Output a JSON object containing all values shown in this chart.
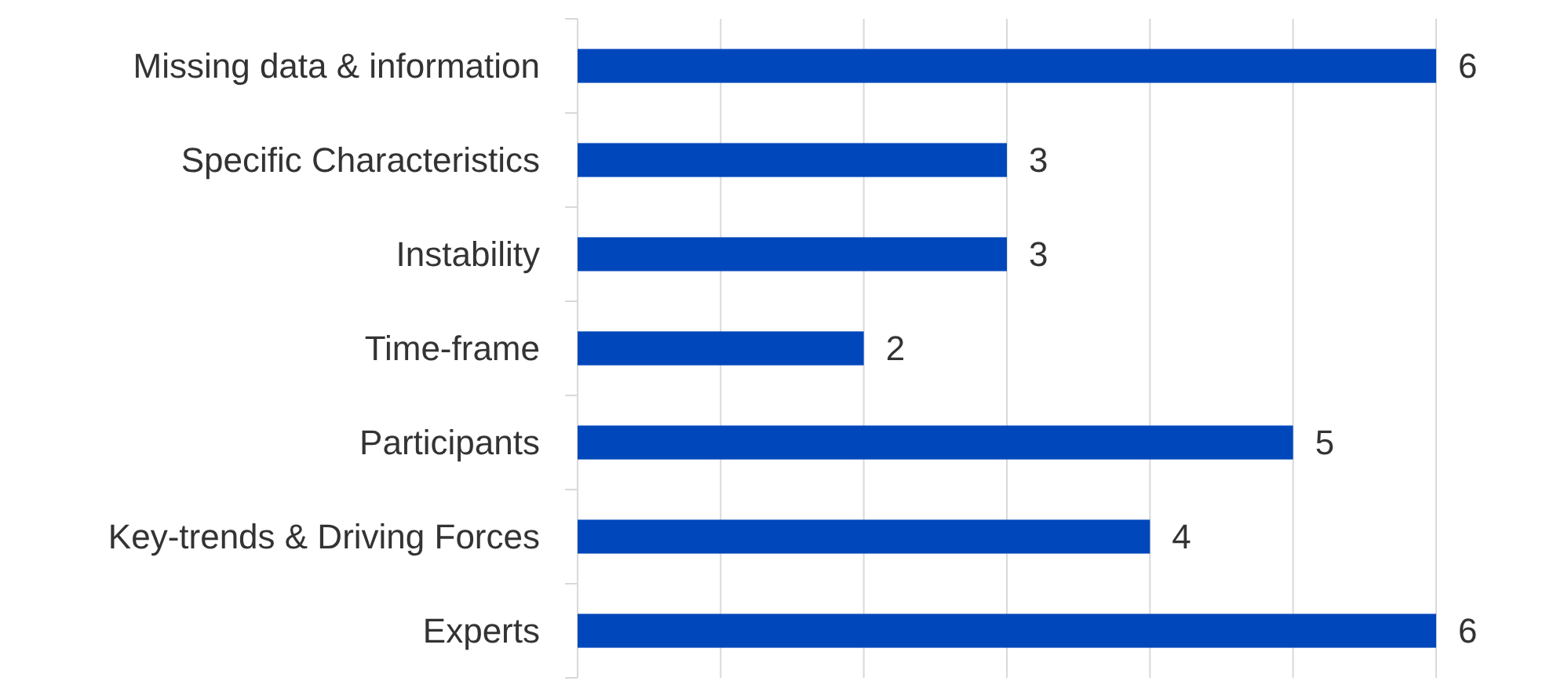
{
  "chart_data": {
    "type": "bar",
    "orientation": "horizontal",
    "categories": [
      "Missing data & information",
      "Specific Characteristics",
      "Instability",
      "Time-frame",
      "Participants",
      "Key-trends & Driving Forces",
      "Experts"
    ],
    "values": [
      6,
      3,
      3,
      2,
      5,
      4,
      6
    ],
    "color": "#0047bb",
    "xlim": [
      0,
      6
    ],
    "xticks": [
      {
        "value": 0,
        "label": null
      },
      {
        "value": 1,
        "label": null
      },
      {
        "value": 2,
        "label": null
      },
      {
        "value": 3,
        "label": null
      },
      {
        "value": 4,
        "label": null
      },
      {
        "value": 5,
        "label": null
      },
      {
        "value": 6,
        "label": null
      }
    ],
    "grid": "x",
    "tick_labels": "y",
    "data_labels": true
  }
}
